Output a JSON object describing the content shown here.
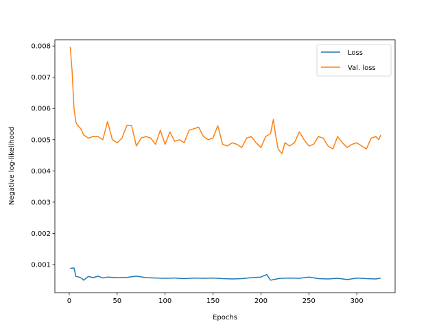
{
  "chart_data": {
    "type": "line",
    "title": "",
    "xlabel": "Epochs",
    "ylabel": "Negative log-likelihood",
    "xlim": [
      -15,
      340
    ],
    "ylim": [
      0.0001,
      0.0082
    ],
    "xticks": [
      0,
      50,
      100,
      150,
      200,
      250,
      300
    ],
    "yticks": [
      0.001,
      0.002,
      0.003,
      0.004,
      0.005,
      0.006,
      0.007,
      0.008
    ],
    "ytick_labels": [
      "0.001",
      "0.002",
      "0.003",
      "0.004",
      "0.005",
      "0.006",
      "0.007",
      "0.008"
    ],
    "xtick_labels": [
      "0",
      "50",
      "100",
      "150",
      "200",
      "250",
      "300"
    ],
    "grid": false,
    "legend": "top-right",
    "series": [
      {
        "name": "Loss",
        "color": "#1f77b4",
        "x": [
          1,
          5,
          7,
          10,
          13,
          15,
          20,
          25,
          30,
          35,
          40,
          50,
          60,
          70,
          80,
          90,
          100,
          110,
          120,
          130,
          140,
          150,
          160,
          170,
          180,
          190,
          200,
          206,
          210,
          220,
          230,
          240,
          250,
          260,
          270,
          280,
          290,
          300,
          310,
          320,
          325
        ],
        "y": [
          0.00088,
          0.00089,
          0.00062,
          0.0006,
          0.00056,
          0.0005,
          0.00062,
          0.00058,
          0.00063,
          0.00057,
          0.0006,
          0.00058,
          0.00059,
          0.00063,
          0.00058,
          0.00057,
          0.00056,
          0.00057,
          0.00055,
          0.00057,
          0.00056,
          0.00057,
          0.00055,
          0.00054,
          0.00055,
          0.00058,
          0.0006,
          0.00068,
          0.0005,
          0.00056,
          0.00057,
          0.00056,
          0.0006,
          0.00055,
          0.00054,
          0.00056,
          0.00052,
          0.00057,
          0.00055,
          0.00054,
          0.00057
        ]
      },
      {
        "name": "Val. loss",
        "color": "#ff7f0e",
        "x": [
          1,
          3,
          5,
          7,
          9,
          12,
          15,
          20,
          25,
          30,
          35,
          40,
          45,
          50,
          55,
          60,
          65,
          70,
          75,
          80,
          85,
          90,
          95,
          100,
          105,
          110,
          115,
          120,
          125,
          130,
          135,
          140,
          145,
          150,
          155,
          160,
          165,
          170,
          175,
          180,
          185,
          190,
          195,
          200,
          205,
          210,
          213,
          215,
          218,
          222,
          225,
          230,
          235,
          240,
          245,
          250,
          255,
          260,
          265,
          270,
          275,
          280,
          285,
          290,
          295,
          300,
          305,
          310,
          315,
          320,
          323,
          325
        ],
        "y": [
          0.00797,
          0.0072,
          0.006,
          0.00555,
          0.00545,
          0.00535,
          0.00515,
          0.00505,
          0.0051,
          0.0051,
          0.005,
          0.00558,
          0.005,
          0.0049,
          0.00505,
          0.00545,
          0.00545,
          0.0048,
          0.00505,
          0.0051,
          0.00505,
          0.00485,
          0.0053,
          0.00485,
          0.00525,
          0.00495,
          0.005,
          0.0049,
          0.0053,
          0.00535,
          0.0054,
          0.0051,
          0.005,
          0.00505,
          0.00545,
          0.00485,
          0.0048,
          0.0049,
          0.00485,
          0.00475,
          0.00505,
          0.0051,
          0.0049,
          0.00475,
          0.0051,
          0.0052,
          0.00565,
          0.0052,
          0.0047,
          0.00455,
          0.0049,
          0.0048,
          0.0049,
          0.00525,
          0.005,
          0.0048,
          0.00485,
          0.0051,
          0.00505,
          0.0048,
          0.0047,
          0.0051,
          0.0049,
          0.00475,
          0.00485,
          0.0049,
          0.0048,
          0.0047,
          0.00505,
          0.0051,
          0.005,
          0.00515
        ]
      }
    ]
  }
}
